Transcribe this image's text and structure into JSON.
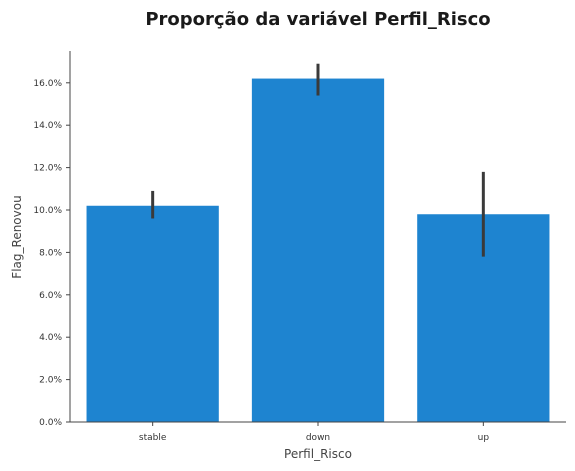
{
  "chart_data": {
    "type": "bar",
    "title": "Proporção da variável Perfil_Risco",
    "xlabel": "Perfil_Risco",
    "ylabel": "Flag_Renovou",
    "categories": [
      "stable",
      "down",
      "up"
    ],
    "values": [
      10.2,
      16.2,
      9.8
    ],
    "error_low": [
      9.6,
      15.4,
      7.8
    ],
    "error_high": [
      10.9,
      16.9,
      11.8
    ],
    "ylim": [
      0,
      17.5
    ],
    "yticks": [
      0,
      2,
      4,
      6,
      8,
      10,
      12,
      14,
      16
    ],
    "ytick_labels": [
      "0.0%",
      "2.0%",
      "4.0%",
      "6.0%",
      "8.0%",
      "10.0%",
      "12.0%",
      "14.0%",
      "16.0%"
    ],
    "grid": false,
    "bar_color": "#1e84d0",
    "error_color": "#3a3a3a"
  }
}
